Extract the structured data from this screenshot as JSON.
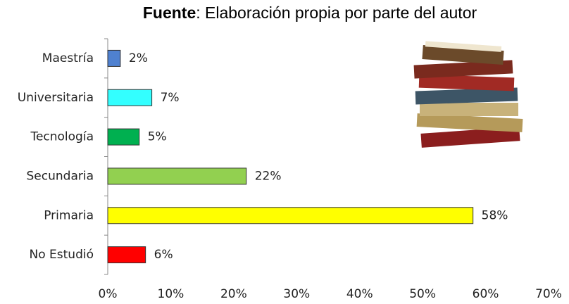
{
  "chart_data": {
    "type": "bar",
    "orientation": "horizontal",
    "title_bold": "Fuente",
    "title": ": Elaboración propia por parte del autor",
    "categories": [
      "Maestría",
      "Universitaria",
      "Tecnología",
      "Secundaria",
      "Primaria",
      "No Estudió"
    ],
    "values": [
      2,
      7,
      5,
      22,
      58,
      6
    ],
    "value_labels": [
      "2%",
      "7%",
      "5%",
      "22%",
      "58%",
      "6%"
    ],
    "colors": [
      "#4f81d0",
      "#33ffff",
      "#00b050",
      "#92d050",
      "#ffff00",
      "#ff0000"
    ],
    "xlim": [
      0,
      70
    ],
    "xticks": [
      {
        "value": 0,
        "label": "0%"
      },
      {
        "value": 10,
        "label": "10%"
      },
      {
        "value": 20,
        "label": "20%"
      },
      {
        "value": 30,
        "label": "30%"
      },
      {
        "value": 40,
        "label": "40%"
      },
      {
        "value": 50,
        "label": "50%"
      },
      {
        "value": 60,
        "label": "60%"
      },
      {
        "value": 70,
        "label": "70%"
      }
    ],
    "grid": false
  }
}
